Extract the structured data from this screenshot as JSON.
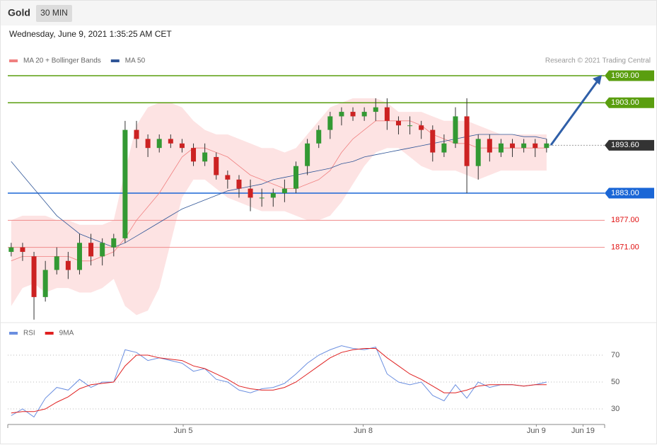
{
  "header": {
    "title": "Gold",
    "interval": "30 MIN",
    "date": "Wednesday, June 9, 2021 1:35:25 AM CET"
  },
  "chart_data": [
    {
      "type": "candlestick",
      "credit": "Research © 2021 Trading Central",
      "up_color": "#339933",
      "down_color": "#cc2222",
      "xlim": [
        -0.3,
        52.1
      ],
      "ylim": [
        1855,
        1910
      ],
      "open": [
        1870,
        1871,
        1869,
        1860,
        1866,
        1868,
        1866,
        1872,
        1869,
        1871,
        1873,
        1897,
        1895,
        1893,
        1895,
        1894,
        1893,
        1890,
        1891,
        1887,
        1886,
        1884,
        1882,
        1882,
        1883,
        1884,
        1889,
        1894,
        1897,
        1900,
        1901,
        1900,
        1901,
        1902,
        1899,
        1898,
        1898,
        1897,
        1892,
        1894,
        1900,
        1889,
        1895,
        1892,
        1894,
        1893,
        1894,
        1893
      ],
      "high": [
        1872,
        1872,
        1870,
        1868,
        1871,
        1870,
        1874,
        1874,
        1873,
        1874,
        1899,
        1899,
        1896,
        1896,
        1896,
        1895,
        1894,
        1894,
        1892,
        1888,
        1887,
        1886,
        1884,
        1884,
        1886,
        1890,
        1895,
        1898,
        1901,
        1902,
        1902,
        1902,
        1904,
        1904,
        1900,
        1900,
        1899,
        1898,
        1896,
        1902,
        1904,
        1896,
        1896,
        1895,
        1895,
        1895,
        1895,
        1895
      ],
      "low": [
        1869,
        1868,
        1855,
        1859,
        1865,
        1864,
        1865,
        1867,
        1867,
        1869,
        1872,
        1893,
        1891,
        1892,
        1893,
        1892,
        1889,
        1889,
        1886,
        1884,
        1882,
        1879,
        1880,
        1880,
        1881,
        1883,
        1887,
        1893,
        1895,
        1898,
        1899,
        1899,
        1899,
        1897,
        1896,
        1896,
        1895,
        1890,
        1891,
        1893,
        1883,
        1886,
        1890,
        1891,
        1891,
        1892,
        1891,
        1892
      ],
      "close": [
        1871,
        1870,
        1860,
        1866,
        1869,
        1866,
        1872,
        1869,
        1872,
        1873,
        1897,
        1895,
        1893,
        1895,
        1894,
        1893,
        1890,
        1892,
        1887,
        1886,
        1884,
        1882,
        1882,
        1883,
        1884,
        1889,
        1894,
        1897,
        1900,
        1901,
        1900,
        1901,
        1902,
        1899,
        1898,
        1898,
        1897,
        1892,
        1894,
        1900,
        1889,
        1895,
        1892,
        1894,
        1893,
        1894,
        1893,
        1894
      ],
      "series": [
        {
          "name": "MA 20 + Bollinger Bands",
          "color": "#f08080",
          "band_color": "#fde3e3",
          "values": [
            1868,
            1869,
            1869,
            1869,
            1869,
            1869,
            1868,
            1868,
            1869,
            1870,
            1873,
            1877,
            1880,
            1883,
            1887,
            1891,
            1893,
            1893,
            1892,
            1891,
            1889,
            1887,
            1886,
            1885,
            1884,
            1884,
            1885,
            1886,
            1888,
            1892,
            1895,
            1897,
            1899,
            1899,
            1899,
            1899,
            1898,
            1896,
            1895,
            1894,
            1894,
            1893,
            1893,
            1893,
            1893,
            1893,
            1893,
            1893
          ],
          "upper": [
            1877,
            1878,
            1878,
            1878,
            1877,
            1877,
            1876,
            1876,
            1876,
            1877,
            1888,
            1898,
            1902,
            1903,
            1903,
            1902,
            1899,
            1897,
            1896,
            1896,
            1895,
            1894,
            1893,
            1893,
            1892,
            1893,
            1896,
            1899,
            1902,
            1903,
            1904,
            1904,
            1904,
            1903,
            1901,
            1901,
            1901,
            1900,
            1899,
            1899,
            1899,
            1898,
            1897,
            1896,
            1896,
            1896,
            1896,
            1896
          ],
          "lower": [
            1858,
            1862,
            1863,
            1861,
            1862,
            1862,
            1861,
            1861,
            1862,
            1864,
            1858,
            1856,
            1857,
            1862,
            1872,
            1882,
            1886,
            1886,
            1884,
            1882,
            1881,
            1880,
            1879,
            1879,
            1879,
            1878,
            1877,
            1877,
            1878,
            1881,
            1885,
            1889,
            1892,
            1893,
            1893,
            1891,
            1889,
            1888,
            1888,
            1888,
            1887,
            1886,
            1887,
            1888,
            1888,
            1888,
            1888,
            1888
          ]
        },
        {
          "name": "MA 50",
          "color": "#2f5597",
          "values": [
            1890,
            1887,
            1884,
            1881,
            1878,
            1876,
            1874,
            1873,
            1872,
            1871,
            1872,
            1873.5,
            1875,
            1876.5,
            1878,
            1879.5,
            1880.5,
            1881.5,
            1882.5,
            1883.5,
            1884,
            1884.5,
            1885,
            1886,
            1886.5,
            1887,
            1887.5,
            1888,
            1888.5,
            1889.5,
            1890,
            1891,
            1891.5,
            1892,
            1892.5,
            1893,
            1893.5,
            1894,
            1894.5,
            1895,
            1895.5,
            1896,
            1896,
            1896,
            1896,
            1895.5,
            1895.5,
            1895
          ]
        }
      ],
      "levels": [
        {
          "value": 1909,
          "label": "1909.00",
          "color": "#5a9e0f",
          "tag": true,
          "line_style": "solid"
        },
        {
          "value": 1903,
          "label": "1903.00",
          "color": "#5a9e0f",
          "tag": true,
          "line_style": "solid"
        },
        {
          "value": 1893.6,
          "label": "1893.60",
          "color": "#333333",
          "tag": true,
          "line_style": "dotted"
        },
        {
          "value": 1883,
          "label": "1883.00",
          "color": "#1a66d6",
          "tag": true,
          "line_style": "solid"
        },
        {
          "value": 1877,
          "label": "1877.00",
          "color": "#f08a8a",
          "tag": false,
          "line_style": "solid"
        },
        {
          "value": 1871,
          "label": "1871.00",
          "color": "#f08a8a",
          "tag": false,
          "line_style": "solid"
        }
      ]
    },
    {
      "type": "line",
      "xlim": [
        -0.3,
        52.1
      ],
      "ylim": [
        20,
        82
      ],
      "yticks": [
        30,
        50,
        70
      ],
      "grid": true,
      "xticks": [
        {
          "value": 15.1,
          "label": "Jun 5"
        },
        {
          "value": 30.9,
          "label": "Jun 8"
        },
        {
          "value": 46.1,
          "label": "Jun 9"
        },
        {
          "value": 50.2,
          "label": "Jun 19"
        }
      ],
      "series": [
        {
          "name": "RSI",
          "color": "#6b8fe0",
          "values": [
            25,
            30,
            24,
            38,
            46,
            44,
            52,
            46,
            50,
            50,
            74,
            72,
            66,
            68,
            66,
            64,
            58,
            60,
            52,
            50,
            44,
            42,
            45,
            46,
            49,
            56,
            64,
            70,
            74,
            77,
            75,
            74,
            76,
            56,
            50,
            48,
            50,
            40,
            36,
            48,
            38,
            50,
            46,
            48,
            48,
            47,
            48,
            50
          ]
        },
        {
          "name": "9MA",
          "color": "#e02020",
          "values": [
            27,
            28,
            28,
            30,
            35,
            39,
            45,
            48,
            49,
            50,
            62,
            70,
            70,
            68,
            67,
            66,
            62,
            60,
            56,
            52,
            47,
            45,
            44,
            44,
            46,
            50,
            56,
            62,
            68,
            72,
            74,
            75,
            75,
            68,
            62,
            56,
            52,
            47,
            42,
            42,
            44,
            47,
            48,
            48,
            48,
            47,
            48,
            48
          ]
        }
      ]
    }
  ]
}
